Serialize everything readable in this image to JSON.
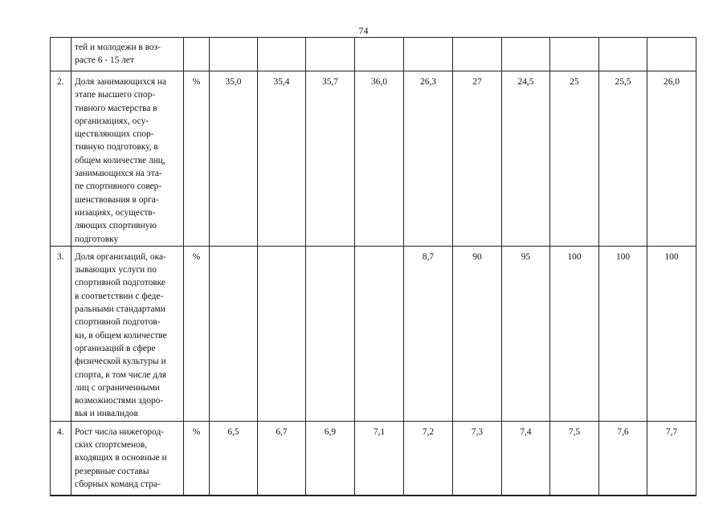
{
  "page_number": "74",
  "rows": [
    {
      "num": "",
      "text": "тей и молодежи в воз-\nрасте 6 - 15 лет",
      "unit": "",
      "values": [
        "",
        "",
        "",
        "",
        "",
        "",
        "",
        "",
        "",
        ""
      ]
    },
    {
      "num": "2.",
      "text": "Доля занимающихся на этапе высшего спор-тивного мастерства в организациях, осу-ществляющих спор-тивную подготовку, в общем количестве лиц, занимающихся на эта-пе спортивного совер-шенствования в орга-низациях, осуществ-ляющих спортивную подготовку",
      "unit": "%",
      "values": [
        "35,0",
        "35,4",
        "35,7",
        "36,0",
        "26,3",
        "27",
        "24,5",
        "25",
        "25,5",
        "26,0"
      ]
    },
    {
      "num": "3.",
      "text": "Доля организаций, ока-зывающих услуги по спортивной подготовке в соответствии с феде-ральными стандартами спортивной подготов-ки, в общем количестве организаций в сфере физической культуры и спорта, в том числе для лиц с ограниченными возможностями здоро-вья и инвалидов",
      "unit": "%",
      "values": [
        "",
        "",
        "",
        "",
        "8,7",
        "90",
        "95",
        "100",
        "100",
        "100"
      ]
    },
    {
      "num": "4.",
      "text": "Рост числа нижегород-ских спортсменов, входящих в основные и резервные составы сборных команд стра-",
      "unit": "%",
      "values": [
        "6,5",
        "6,7",
        "6,9",
        "7,1",
        "7,2",
        "7,3",
        "7,4",
        "7,5",
        "7,6",
        "7,7"
      ]
    }
  ]
}
